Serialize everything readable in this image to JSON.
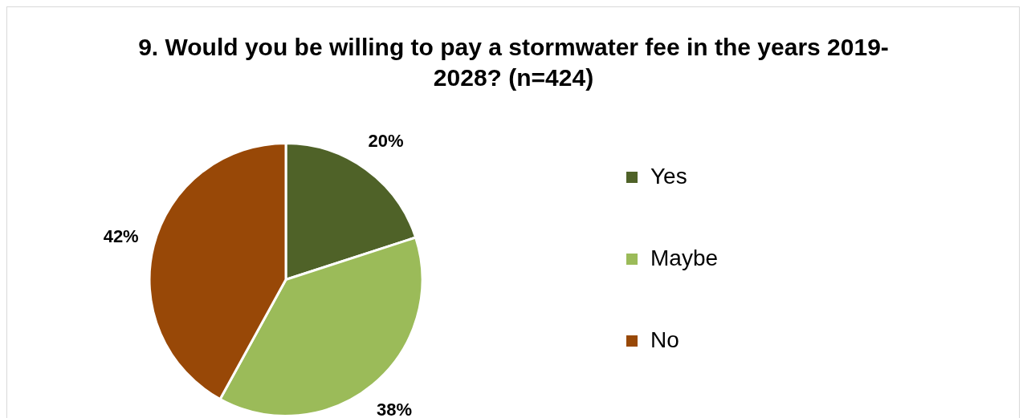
{
  "chart_data": {
    "type": "pie",
    "title": "9. Would you be willing to pay a stormwater fee in the years 2019-2028? (n=424)",
    "categories": [
      "Yes",
      "Maybe",
      "No"
    ],
    "values": [
      20,
      38,
      42
    ],
    "colors": [
      "#4f6228",
      "#9bbb59",
      "#984807"
    ],
    "value_labels": [
      "20%",
      "38%",
      "42%"
    ],
    "legend": "right"
  }
}
